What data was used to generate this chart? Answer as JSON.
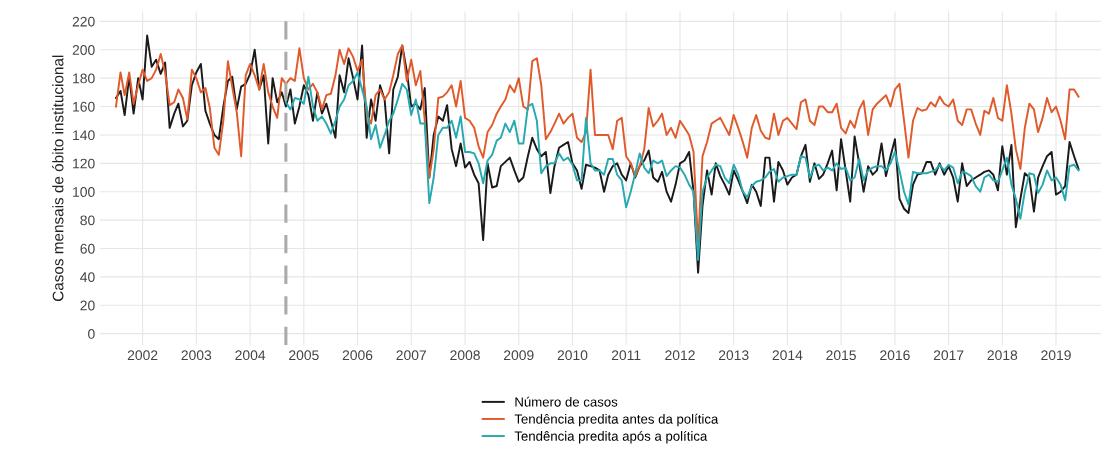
{
  "chart_data": {
    "type": "line",
    "ylabel": "Casos mensais de óbito institucional",
    "x": [
      "2002-01",
      "2002-02",
      "2002-03",
      "2002-04",
      "2002-05",
      "2002-06",
      "2002-07",
      "2002-08",
      "2002-09",
      "2002-10",
      "2002-11",
      "2002-12",
      "2003-01",
      "2003-02",
      "2003-03",
      "2003-04",
      "2003-05",
      "2003-06",
      "2003-07",
      "2003-08",
      "2003-09",
      "2003-10",
      "2003-11",
      "2003-12",
      "2004-01",
      "2004-02",
      "2004-03",
      "2004-04",
      "2004-05",
      "2004-06",
      "2004-07",
      "2004-08",
      "2004-09",
      "2004-10",
      "2004-11",
      "2004-12",
      "2005-01",
      "2005-02",
      "2005-03",
      "2005-04",
      "2005-05",
      "2005-06",
      "2005-07",
      "2005-08",
      "2005-09",
      "2005-10",
      "2005-11",
      "2005-12",
      "2006-01",
      "2006-02",
      "2006-03",
      "2006-04",
      "2006-05",
      "2006-06",
      "2006-07",
      "2006-08",
      "2006-09",
      "2006-10",
      "2006-11",
      "2006-12",
      "2007-01",
      "2007-02",
      "2007-03",
      "2007-04",
      "2007-05",
      "2007-06",
      "2007-07",
      "2007-08",
      "2007-09",
      "2007-10",
      "2007-11",
      "2007-12",
      "2008-01",
      "2008-02",
      "2008-03",
      "2008-04",
      "2008-05",
      "2008-06",
      "2008-07",
      "2008-08",
      "2008-09",
      "2008-10",
      "2008-11",
      "2008-12",
      "2009-01",
      "2009-02",
      "2009-03",
      "2009-04",
      "2009-05",
      "2009-06",
      "2009-07",
      "2009-08",
      "2009-09",
      "2009-10",
      "2009-11",
      "2009-12",
      "2010-01",
      "2010-02",
      "2010-03",
      "2010-04",
      "2010-05",
      "2010-06",
      "2010-07",
      "2010-08",
      "2010-09",
      "2010-10",
      "2010-11",
      "2010-12",
      "2011-01",
      "2011-02",
      "2011-03",
      "2011-04",
      "2011-05",
      "2011-06",
      "2011-07",
      "2011-08",
      "2011-09",
      "2011-10",
      "2011-11",
      "2011-12",
      "2012-01",
      "2012-02",
      "2012-03",
      "2012-04",
      "2012-05",
      "2012-06",
      "2012-07",
      "2012-08",
      "2012-09",
      "2012-10",
      "2012-11",
      "2012-12",
      "2013-01",
      "2013-02",
      "2013-03",
      "2013-04",
      "2013-05",
      "2013-06",
      "2013-07",
      "2013-08",
      "2013-09",
      "2013-10",
      "2013-11",
      "2013-12",
      "2014-01",
      "2014-02",
      "2014-03",
      "2014-04",
      "2014-05",
      "2014-06",
      "2014-07",
      "2014-08",
      "2014-09",
      "2014-10",
      "2014-11",
      "2014-12",
      "2015-01",
      "2015-02",
      "2015-03",
      "2015-04",
      "2015-05",
      "2015-06",
      "2015-07",
      "2015-08",
      "2015-09",
      "2015-10",
      "2015-11",
      "2015-12",
      "2016-01",
      "2016-02",
      "2016-03",
      "2016-04",
      "2016-05",
      "2016-06",
      "2016-07",
      "2016-08",
      "2016-09",
      "2016-10",
      "2016-11",
      "2016-12",
      "2017-01",
      "2017-02",
      "2017-03",
      "2017-04",
      "2017-05",
      "2017-06",
      "2017-07",
      "2017-08",
      "2017-09",
      "2017-10",
      "2017-11",
      "2017-12",
      "2018-01",
      "2018-02",
      "2018-03",
      "2018-04",
      "2018-05",
      "2018-06",
      "2018-07",
      "2018-08",
      "2018-09",
      "2018-10",
      "2018-11",
      "2018-12",
      "2019-01",
      "2019-02",
      "2019-03",
      "2019-04",
      "2019-05",
      "2019-06",
      "2019-07",
      "2019-08",
      "2019-09",
      "2019-10",
      "2019-11",
      "2019-12"
    ],
    "xlim": [
      "2001-09-15",
      "2020-05-01"
    ],
    "ylim": [
      -8,
      227
    ],
    "yticks": [
      0,
      20,
      40,
      60,
      80,
      100,
      120,
      140,
      160,
      180,
      200,
      220
    ],
    "xticks": [
      {
        "value": "2002-07",
        "label": "2002"
      },
      {
        "value": "2003-07",
        "label": "2003"
      },
      {
        "value": "2004-07",
        "label": "2004"
      },
      {
        "value": "2005-07",
        "label": "2005"
      },
      {
        "value": "2006-07",
        "label": "2006"
      },
      {
        "value": "2007-07",
        "label": "2007"
      },
      {
        "value": "2008-07",
        "label": "2008"
      },
      {
        "value": "2009-07",
        "label": "2009"
      },
      {
        "value": "2010-07",
        "label": "2010"
      },
      {
        "value": "2011-07",
        "label": "2011"
      },
      {
        "value": "2012-07",
        "label": "2012"
      },
      {
        "value": "2013-07",
        "label": "2013"
      },
      {
        "value": "2014-07",
        "label": "2014"
      },
      {
        "value": "2015-07",
        "label": "2015"
      },
      {
        "value": "2016-07",
        "label": "2016"
      },
      {
        "value": "2017-07",
        "label": "2017"
      },
      {
        "value": "2018-07",
        "label": "2018"
      },
      {
        "value": "2019-07",
        "label": "2019"
      }
    ],
    "grid": true,
    "legend": "bottom",
    "marker": "none",
    "line_style": "solid",
    "ref_lines": [
      {
        "axis": "x",
        "value": "2005-03",
        "label": null,
        "color": "#aaaaaa",
        "line_style": "dashed"
      }
    ],
    "series": [
      {
        "name": "Número de casos",
        "color": "#1a1a1a",
        "values": [
          166,
          171,
          154,
          181,
          155,
          180,
          165,
          210,
          188,
          193,
          183,
          191,
          145,
          155,
          162,
          146,
          150,
          175,
          184,
          190,
          157,
          148,
          140,
          137,
          160,
          178,
          181,
          158,
          174,
          176,
          183,
          200,
          172,
          182,
          134,
          180,
          163,
          170,
          160,
          172,
          148,
          160,
          175,
          168,
          150,
          170,
          155,
          162,
          150,
          138,
          182,
          170,
          194,
          180,
          165,
          203,
          138,
          165,
          150,
          175,
          165,
          127,
          172,
          181,
          203,
          185,
          160,
          162,
          158,
          173,
          110,
          140,
          153,
          150,
          161,
          130,
          118,
          134,
          117,
          121,
          112,
          106,
          66,
          120,
          103,
          104,
          118,
          121,
          124,
          115,
          107,
          110,
          125,
          138,
          130,
          125,
          128,
          99,
          118,
          131,
          133,
          135,
          120,
          115,
          102,
          119,
          118,
          117,
          115,
          100,
          112,
          118,
          120,
          112,
          108,
          120,
          110,
          118,
          122,
          129,
          110,
          107,
          114,
          100,
          93,
          105,
          120,
          122,
          128,
          100,
          43,
          90,
          115,
          98,
          120,
          111,
          105,
          98,
          115,
          108,
          100,
          92,
          105,
          100,
          90,
          124,
          124,
          93,
          121,
          115,
          105,
          110,
          112,
          125,
          133,
          107,
          120,
          109,
          112,
          120,
          129,
          101,
          137,
          115,
          93,
          139,
          120,
          100,
          118,
          112,
          115,
          134,
          111,
          125,
          137,
          95,
          88,
          85,
          105,
          112,
          113,
          121,
          121,
          112,
          120,
          112,
          118,
          110,
          93,
          120,
          104,
          108,
          110,
          112,
          114,
          115,
          112,
          101,
          132,
          112,
          133,
          75,
          95,
          113,
          110,
          86,
          110,
          118,
          125,
          128,
          98,
          100,
          104,
          135,
          125,
          116
        ]
      },
      {
        "name": "Tendência predita antes da política",
        "color": "#e05a2b",
        "values": [
          160,
          184,
          168,
          184,
          162,
          175,
          186,
          178,
          180,
          186,
          197,
          184,
          161,
          163,
          172,
          166,
          151,
          186,
          180,
          170,
          173,
          159,
          131,
          126,
          150,
          192,
          174,
          156,
          125,
          182,
          190,
          182,
          172,
          190,
          170,
          160,
          152,
          180,
          176,
          180,
          178,
          201,
          180,
          172,
          176,
          170,
          158,
          168,
          169,
          182,
          200,
          190,
          201,
          195,
          185,
          193,
          155,
          148,
          168,
          172,
          165,
          170,
          182,
          197,
          203,
          178,
          193,
          175,
          185,
          150,
          110,
          130,
          166,
          167,
          170,
          175,
          160,
          178,
          152,
          150,
          145,
          132,
          124,
          142,
          147,
          155,
          160,
          165,
          175,
          170,
          180,
          160,
          158,
          192,
          194,
          175,
          137,
          142,
          148,
          155,
          148,
          152,
          155,
          138,
          135,
          142,
          186,
          140,
          140,
          140,
          140,
          130,
          150,
          152,
          125,
          120,
          111,
          118,
          130,
          159,
          146,
          150,
          155,
          140,
          145,
          138,
          150,
          145,
          140,
          128,
          63,
          125,
          135,
          148,
          150,
          152,
          146,
          140,
          154,
          145,
          135,
          124,
          145,
          154,
          143,
          138,
          137,
          155,
          140,
          150,
          152,
          148,
          144,
          163,
          165,
          150,
          147,
          160,
          160,
          156,
          156,
          162,
          145,
          141,
          150,
          145,
          158,
          164,
          140,
          158,
          162,
          165,
          168,
          160,
          172,
          176,
          150,
          124,
          150,
          159,
          157,
          158,
          163,
          160,
          167,
          162,
          160,
          165,
          150,
          147,
          158,
          158,
          148,
          140,
          157,
          155,
          166,
          152,
          150,
          175,
          155,
          130,
          116,
          145,
          162,
          158,
          142,
          152,
          166,
          156,
          160,
          150,
          137,
          172,
          172,
          167
        ]
      },
      {
        "name": "Tendência predita após a política",
        "color": "#26a9b0",
        "values": [
          null,
          null,
          null,
          null,
          null,
          null,
          null,
          null,
          null,
          null,
          null,
          null,
          null,
          null,
          null,
          null,
          null,
          null,
          null,
          null,
          null,
          null,
          null,
          null,
          null,
          null,
          null,
          null,
          null,
          null,
          null,
          null,
          null,
          null,
          null,
          null,
          null,
          null,
          163,
          158,
          166,
          165,
          162,
          181,
          160,
          150,
          153,
          148,
          141,
          150,
          160,
          165,
          175,
          178,
          184,
          172,
          160,
          137,
          147,
          131,
          140,
          150,
          155,
          165,
          176,
          172,
          154,
          165,
          148,
          148,
          92,
          110,
          140,
          145,
          145,
          150,
          138,
          153,
          128,
          128,
          127,
          120,
          106,
          122,
          126,
          136,
          138,
          148,
          142,
          150,
          134,
          134,
          160,
          162,
          150,
          113,
          118,
          120,
          120,
          127,
          122,
          124,
          119,
          108,
          108,
          152,
          120,
          115,
          115,
          112,
          123,
          123,
          112,
          108,
          89,
          100,
          113,
          127,
          117,
          113,
          122,
          120,
          122,
          111,
          115,
          118,
          117,
          112,
          105,
          100,
          52,
          100,
          110,
          115,
          119,
          118,
          110,
          106,
          119,
          112,
          100,
          96,
          104,
          107,
          108,
          110,
          114,
          116,
          107,
          110,
          111,
          112,
          112,
          125,
          124,
          110,
          118,
          119,
          115,
          117,
          115,
          120,
          116,
          117,
          108,
          110,
          123,
          108,
          115,
          117,
          118,
          118,
          115,
          120,
          128,
          115,
          100,
          91,
          114,
          113,
          113,
          113,
          114,
          115,
          119,
          115,
          119,
          117,
          106,
          114,
          113,
          111,
          104,
          100,
          110,
          112,
          108,
          107,
          115,
          124,
          105,
          95,
          81,
          100,
          113,
          112,
          99,
          105,
          115,
          108,
          110,
          105,
          94,
          118,
          119,
          115
        ]
      }
    ]
  }
}
